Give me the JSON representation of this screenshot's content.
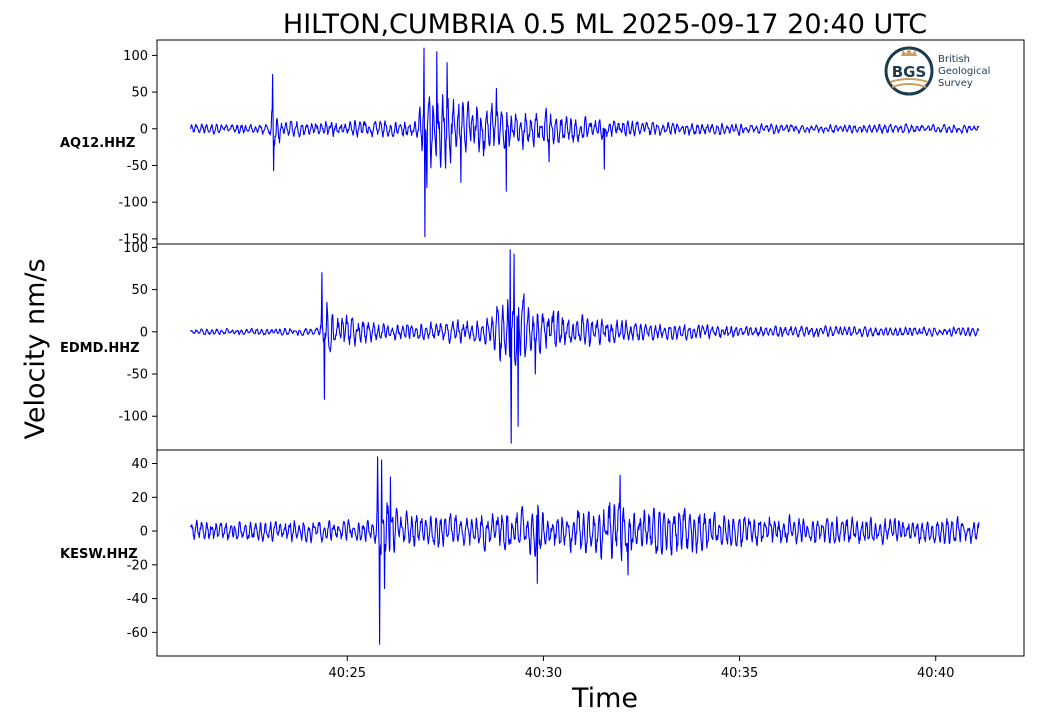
{
  "chart_data": {
    "type": "line",
    "title": "HILTON,CUMBRIA 0.5 ML   2025-09-17 20:40 UTC",
    "xlabel": "Time",
    "ylabel": "Velocity nm/s",
    "x_tick_labels": [
      "40:25",
      "40:30",
      "40:35",
      "40:40"
    ],
    "x_ticks_seconds": [
      25,
      30,
      35,
      40
    ],
    "x_range_seconds": [
      20.15,
      42.25
    ],
    "trace_span_seconds": [
      21.0,
      41.1
    ],
    "line_color": "#0000ff",
    "grid": false,
    "logo": {
      "text_lines": [
        "British",
        "Geological",
        "Survey"
      ],
      "badge": "BGS"
    },
    "panels": [
      {
        "station": "AQ12.HHZ",
        "ylim": [
          -157,
          121
        ],
        "y_ticks": [
          100,
          50,
          0,
          -50,
          -100,
          -150
        ],
        "background_amplitude": 9,
        "envelope": [
          [
            21.0,
            9
          ],
          [
            23.0,
            10
          ],
          [
            23.1,
            48
          ],
          [
            23.4,
            16
          ],
          [
            24.0,
            14
          ],
          [
            26.8,
            16
          ],
          [
            26.95,
            95
          ],
          [
            27.2,
            75
          ],
          [
            28.3,
            50
          ],
          [
            29.0,
            38
          ],
          [
            30.5,
            32
          ],
          [
            31.0,
            24
          ],
          [
            32.0,
            16
          ],
          [
            33.5,
            11
          ],
          [
            36.0,
            9
          ],
          [
            41.1,
            8
          ]
        ],
        "spikes": [
          [
            23.1,
            74
          ],
          [
            23.12,
            -57
          ],
          [
            26.95,
            110
          ],
          [
            26.98,
            -147
          ],
          [
            27.03,
            -80
          ],
          [
            27.28,
            105
          ],
          [
            27.55,
            90
          ],
          [
            27.9,
            -73
          ],
          [
            28.8,
            55
          ],
          [
            29.05,
            -85
          ],
          [
            30.15,
            -45
          ],
          [
            31.55,
            -55
          ]
        ]
      },
      {
        "station": "EDMD.HHZ",
        "ylim": [
          -140,
          104
        ],
        "y_ticks": [
          100,
          50,
          0,
          -50,
          -100
        ],
        "background_amplitude": 5,
        "envelope": [
          [
            21.0,
            5
          ],
          [
            24.3,
            6
          ],
          [
            24.35,
            42
          ],
          [
            24.8,
            28
          ],
          [
            25.8,
            15
          ],
          [
            26.5,
            14
          ],
          [
            28.5,
            20
          ],
          [
            29.2,
            70
          ],
          [
            29.6,
            45
          ],
          [
            30.5,
            30
          ],
          [
            31.5,
            22
          ],
          [
            33.0,
            14
          ],
          [
            35.5,
            9
          ],
          [
            41.1,
            7
          ]
        ],
        "spikes": [
          [
            24.35,
            70
          ],
          [
            24.42,
            -80
          ],
          [
            24.48,
            35
          ],
          [
            29.15,
            97
          ],
          [
            29.18,
            -132
          ],
          [
            29.25,
            92
          ],
          [
            29.35,
            -112
          ],
          [
            29.5,
            45
          ],
          [
            29.8,
            -50
          ]
        ]
      },
      {
        "station": "KESW.HHZ",
        "ylim": [
          -74,
          48
        ],
        "y_ticks": [
          40,
          20,
          0,
          -20,
          -40,
          -60
        ],
        "background_amplitude": 8,
        "envelope": [
          [
            21.0,
            8
          ],
          [
            25.7,
            9
          ],
          [
            25.8,
            36
          ],
          [
            26.3,
            16
          ],
          [
            28.0,
            12
          ],
          [
            29.8,
            20
          ],
          [
            30.5,
            14
          ],
          [
            31.9,
            28
          ],
          [
            32.4,
            18
          ],
          [
            33.2,
            22
          ],
          [
            34.5,
            14
          ],
          [
            36.0,
            12
          ],
          [
            41.1,
            10
          ]
        ],
        "spikes": [
          [
            25.78,
            44
          ],
          [
            25.82,
            -67
          ],
          [
            25.87,
            42
          ],
          [
            25.95,
            -34
          ],
          [
            26.1,
            32
          ],
          [
            29.85,
            -31
          ],
          [
            31.95,
            33
          ],
          [
            32.15,
            -26
          ]
        ]
      }
    ]
  }
}
